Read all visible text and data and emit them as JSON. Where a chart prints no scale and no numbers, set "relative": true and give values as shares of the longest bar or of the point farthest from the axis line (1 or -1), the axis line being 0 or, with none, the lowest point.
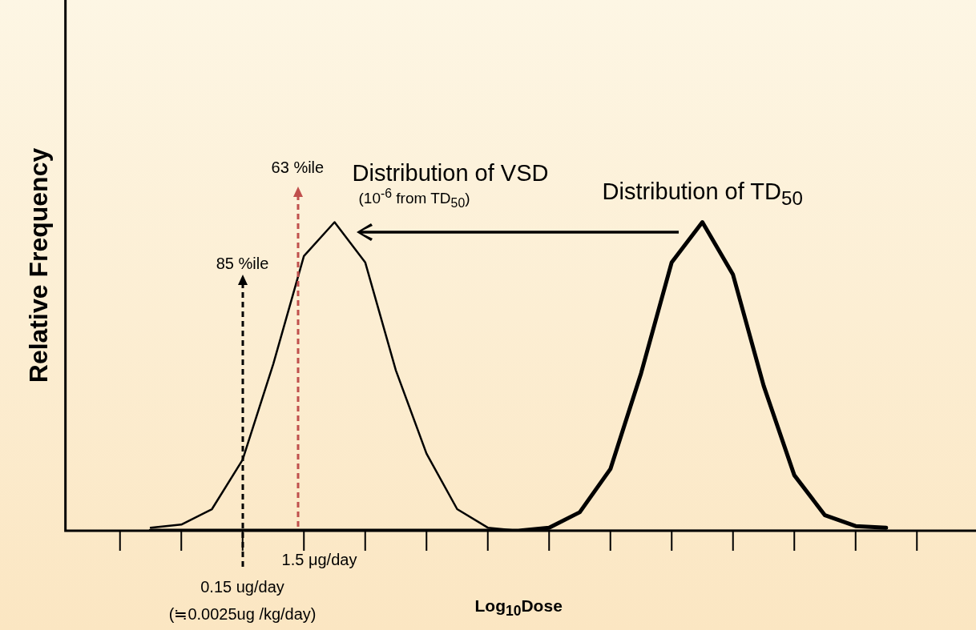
{
  "chart_data": {
    "type": "line",
    "relative": true,
    "xlabel": "Log$_{10}$Dose",
    "ylabel": "Relative Frequency",
    "grid": false,
    "legend": false,
    "marker": "none",
    "categories": [
      null,
      null,
      null,
      null,
      null,
      null,
      null,
      null,
      null,
      null,
      null,
      null,
      null,
      null,
      null,
      null,
      null,
      null,
      null,
      null,
      null,
      null,
      null,
      null,
      null
    ],
    "series": [
      {
        "name": "Distribution of VSD",
        "color": "#000000",
        "values": [
          0.01,
          0.02,
          0.07,
          0.23,
          0.54,
          0.89,
          1.0,
          0.87,
          0.52,
          0.25,
          0.07,
          0.01,
          0.0,
          0,
          0,
          0,
          0,
          0,
          0,
          0,
          0,
          0,
          0,
          0,
          0
        ]
      },
      {
        "name": "Distribution of TD$_{50}$",
        "color": "#000000",
        "values": [
          0,
          0,
          0,
          0,
          0,
          0,
          0,
          0,
          0,
          0,
          0,
          0,
          0.0,
          0.01,
          0.06,
          0.2,
          0.51,
          0.87,
          1.0,
          0.83,
          0.47,
          0.18,
          0.05,
          0.015,
          0.01
        ]
      }
    ],
    "annotations": [
      "(10$^{-6}$ from TD$_{50}$)",
      "63 %ile",
      "85 %ile",
      "1.5 μg/day",
      "0.15 ug/day",
      "(≒0.0025ug /kg/day)"
    ]
  }
}
